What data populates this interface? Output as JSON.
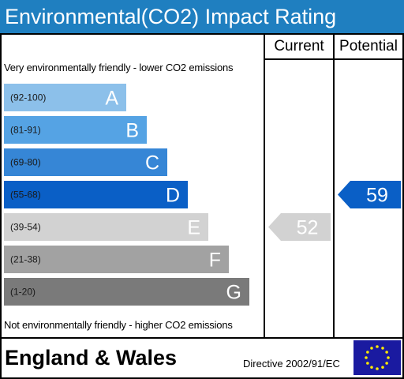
{
  "header": {
    "title": "Environmental(CO2) Impact Rating"
  },
  "columns": {
    "current_label": "Current",
    "potential_label": "Potential"
  },
  "notes": {
    "top": "Very environmentally friendly - lower CO2 emissions",
    "bottom": "Not environmentally friendly - higher CO2 emissions"
  },
  "footer": {
    "country": "England & Wales",
    "directive": "Directive 2002/91/EC",
    "flag_icon": "eu-flag-icon"
  },
  "chart_data": {
    "type": "bar",
    "title": "Environmental(CO2) Impact Rating",
    "categories": [
      "A",
      "B",
      "C",
      "D",
      "E",
      "F",
      "G"
    ],
    "bands": [
      {
        "letter": "A",
        "range": "(92-100)",
        "min": 92,
        "max": 100,
        "color": "#8cc0ea"
      },
      {
        "letter": "B",
        "range": "(81-91)",
        "min": 81,
        "max": 91,
        "color": "#55a3e4"
      },
      {
        "letter": "C",
        "range": "(69-80)",
        "min": 69,
        "max": 80,
        "color": "#3686d6"
      },
      {
        "letter": "D",
        "range": "(55-68)",
        "min": 55,
        "max": 68,
        "color": "#0a5fc6"
      },
      {
        "letter": "E",
        "range": "(39-54)",
        "min": 39,
        "max": 54,
        "color": "#d2d2d2"
      },
      {
        "letter": "F",
        "range": "(21-38)",
        "min": 21,
        "max": 38,
        "color": "#a2a2a2"
      },
      {
        "letter": "G",
        "range": "(1-20)",
        "min": 1,
        "max": 20,
        "color": "#7a7a7a"
      }
    ],
    "series": [
      {
        "name": "Current",
        "value": 52,
        "band": "E",
        "color": "#d2d2d2"
      },
      {
        "name": "Potential",
        "value": 59,
        "band": "D",
        "color": "#0a5fc6"
      }
    ]
  }
}
